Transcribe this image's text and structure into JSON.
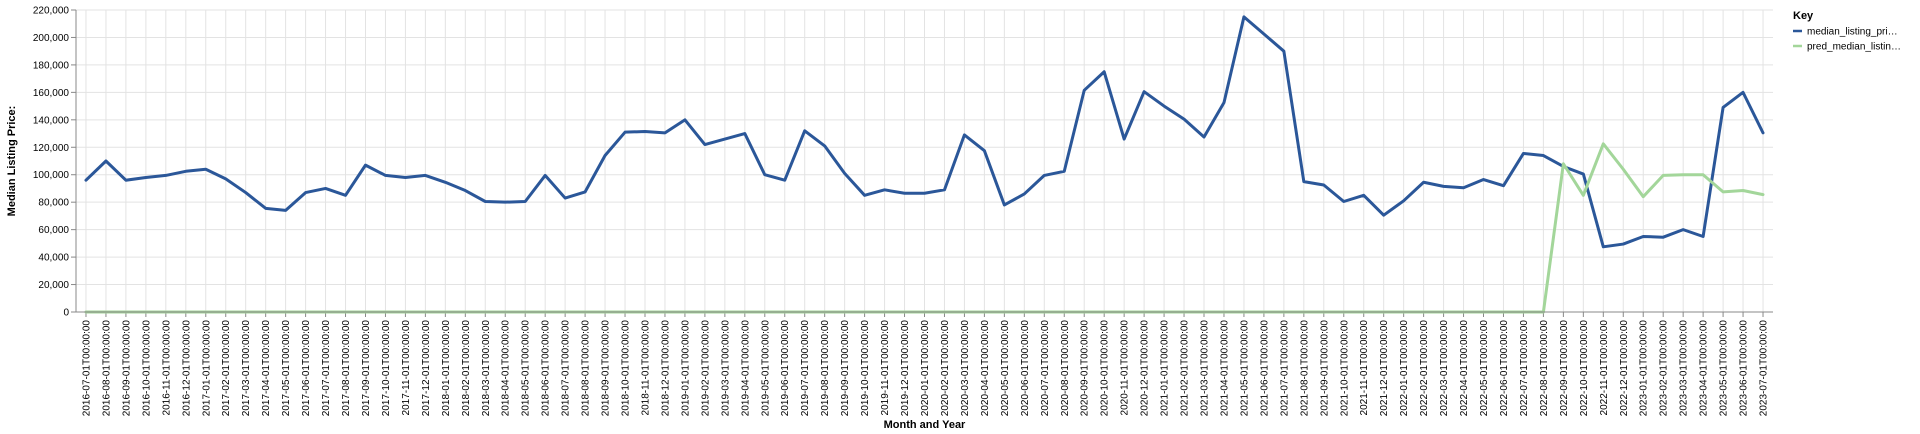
{
  "chart_data": {
    "type": "line",
    "xlabel": "Month and Year",
    "ylabel": "Median Listing Price:",
    "ylim": [
      0,
      220000
    ],
    "yticks": [
      0,
      20000,
      40000,
      60000,
      80000,
      100000,
      120000,
      140000,
      160000,
      180000,
      200000,
      220000
    ],
    "ytick_labels": [
      "0",
      "20,000",
      "40,000",
      "60,000",
      "80,000",
      "100,000",
      "120,000",
      "140,000",
      "160,000",
      "180,000",
      "200,000",
      "220,000"
    ],
    "grid": true,
    "legend": {
      "title": "Key",
      "placement": "top-right",
      "entries": [
        "median_listing_pri…",
        "pred_median_listin…"
      ]
    },
    "x": [
      "2016-07-01T00:00:00",
      "2016-08-01T00:00:00",
      "2016-09-01T00:00:00",
      "2016-10-01T00:00:00",
      "2016-11-01T00:00:00",
      "2016-12-01T00:00:00",
      "2017-01-01T00:00:00",
      "2017-02-01T00:00:00",
      "2017-03-01T00:00:00",
      "2017-04-01T00:00:00",
      "2017-05-01T00:00:00",
      "2017-06-01T00:00:00",
      "2017-07-01T00:00:00",
      "2017-08-01T00:00:00",
      "2017-09-01T00:00:00",
      "2017-10-01T00:00:00",
      "2017-11-01T00:00:00",
      "2017-12-01T00:00:00",
      "2018-01-01T00:00:00",
      "2018-02-01T00:00:00",
      "2018-03-01T00:00:00",
      "2018-04-01T00:00:00",
      "2018-05-01T00:00:00",
      "2018-06-01T00:00:00",
      "2018-07-01T00:00:00",
      "2018-08-01T00:00:00",
      "2018-09-01T00:00:00",
      "2018-10-01T00:00:00",
      "2018-11-01T00:00:00",
      "2018-12-01T00:00:00",
      "2019-01-01T00:00:00",
      "2019-02-01T00:00:00",
      "2019-03-01T00:00:00",
      "2019-04-01T00:00:00",
      "2019-05-01T00:00:00",
      "2019-06-01T00:00:00",
      "2019-07-01T00:00:00",
      "2019-08-01T00:00:00",
      "2019-09-01T00:00:00",
      "2019-10-01T00:00:00",
      "2019-11-01T00:00:00",
      "2019-12-01T00:00:00",
      "2020-01-01T00:00:00",
      "2020-02-01T00:00:00",
      "2020-03-01T00:00:00",
      "2020-04-01T00:00:00",
      "2020-05-01T00:00:00",
      "2020-06-01T00:00:00",
      "2020-07-01T00:00:00",
      "2020-08-01T00:00:00",
      "2020-09-01T00:00:00",
      "2020-10-01T00:00:00",
      "2020-11-01T00:00:00",
      "2020-12-01T00:00:00",
      "2021-01-01T00:00:00",
      "2021-02-01T00:00:00",
      "2021-03-01T00:00:00",
      "2021-04-01T00:00:00",
      "2021-05-01T00:00:00",
      "2021-06-01T00:00:00",
      "2021-07-01T00:00:00",
      "2021-08-01T00:00:00",
      "2021-09-01T00:00:00",
      "2021-10-01T00:00:00",
      "2021-11-01T00:00:00",
      "2021-12-01T00:00:00",
      "2022-01-01T00:00:00",
      "2022-02-01T00:00:00",
      "2022-03-01T00:00:00",
      "2022-04-01T00:00:00",
      "2022-05-01T00:00:00",
      "2022-06-01T00:00:00",
      "2022-07-01T00:00:00",
      "2022-08-01T00:00:00",
      "2022-09-01T00:00:00",
      "2022-10-01T00:00:00",
      "2022-11-01T00:00:00",
      "2022-12-01T00:00:00",
      "2023-01-01T00:00:00",
      "2023-02-01T00:00:00",
      "2023-03-01T00:00:00",
      "2023-04-01T00:00:00",
      "2023-05-01T00:00:00",
      "2023-06-01T00:00:00",
      "2023-07-01T00:00:00"
    ],
    "series": [
      {
        "name": "median_listing_pri…",
        "color": "#2b5799",
        "values": [
          96000,
          110000,
          96000,
          98000,
          99500,
          102500,
          104000,
          97000,
          87000,
          75500,
          74000,
          87000,
          90000,
          85000,
          107000,
          99500,
          98000,
          99500,
          94500,
          88500,
          80500,
          80000,
          80500,
          99500,
          83000,
          87500,
          114000,
          131000,
          131500,
          130500,
          140000,
          122000,
          126000,
          130000,
          100000,
          96000,
          132000,
          121000,
          101000,
          85000,
          89000,
          86500,
          86500,
          89000,
          129000,
          117500,
          78000,
          86000,
          99500,
          102500,
          161500,
          175000,
          126000,
          160500,
          150000,
          140500,
          127500,
          152500,
          215000,
          202500,
          190000,
          95000,
          92500,
          80500,
          85000,
          70500,
          81000,
          94500,
          91500,
          90500,
          96500,
          92000,
          115500,
          114000,
          106000,
          100500,
          47500,
          49500,
          55000,
          54500,
          60000,
          55000,
          149000,
          160000,
          130500
        ]
      },
      {
        "name": "pred_median_listin…",
        "color": "#a3d69a",
        "values": [
          0,
          0,
          0,
          0,
          0,
          0,
          0,
          0,
          0,
          0,
          0,
          0,
          0,
          0,
          0,
          0,
          0,
          0,
          0,
          0,
          0,
          0,
          0,
          0,
          0,
          0,
          0,
          0,
          0,
          0,
          0,
          0,
          0,
          0,
          0,
          0,
          0,
          0,
          0,
          0,
          0,
          0,
          0,
          0,
          0,
          0,
          0,
          0,
          0,
          0,
          0,
          0,
          0,
          0,
          0,
          0,
          0,
          0,
          0,
          0,
          0,
          0,
          0,
          0,
          0,
          0,
          0,
          0,
          0,
          0,
          0,
          0,
          0,
          0,
          108000,
          85000,
          122500,
          104000,
          84000,
          99500,
          100000,
          100000,
          87500,
          88500,
          85500
        ]
      }
    ]
  }
}
